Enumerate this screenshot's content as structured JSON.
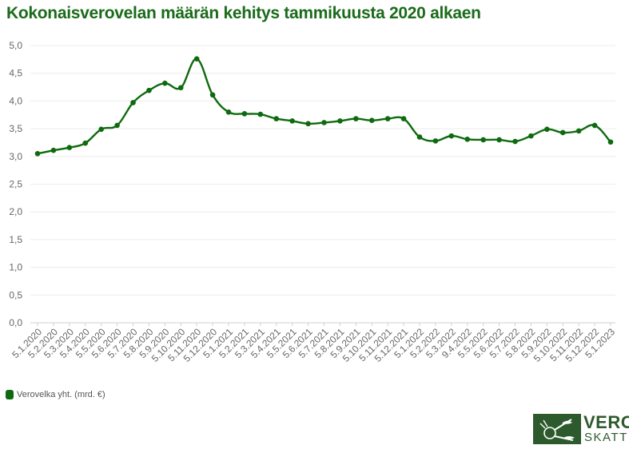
{
  "title": "Kokonaisverovelan määrän kehitys tammikuusta 2020 alkaen",
  "legend": {
    "label": "Verovelka yht. (mrd. €)",
    "color": "#0e6a0e"
  },
  "logo": {
    "word1": "VERO",
    "word2": "SKATT"
  },
  "chart_data": {
    "type": "line",
    "categories": [
      "5.1.2020",
      "5.2.2020",
      "5.3.2020",
      "5.4.2020",
      "5.5.2020",
      "5.6.2020",
      "5.7.2020",
      "5.8.2020",
      "5.9.2020",
      "5.10.2020",
      "5.11.2020",
      "5.12.2020",
      "5.1.2021",
      "5.2.2021",
      "5.3.2021",
      "5.4.2021",
      "5.5.2021",
      "5.6.2021",
      "5.7.2021",
      "5.8.2021",
      "5.9.2021",
      "5.10.2021",
      "5.11.2021",
      "5.12.2021",
      "5.1.2022",
      "5.2.2022",
      "5.3.2022",
      "9.4.2022",
      "5.5.2022",
      "5.6.2022",
      "5.7.2022",
      "5.8.2022",
      "5.9.2022",
      "5.10.2022",
      "5.11.2022",
      "5.12.2022",
      "5.1.2023"
    ],
    "series": [
      {
        "name": "Verovelka yht. (mrd. €)",
        "color": "#0e6a0e",
        "values": [
          3.05,
          3.11,
          3.16,
          3.24,
          3.49,
          3.56,
          3.97,
          4.19,
          4.32,
          4.24,
          4.76,
          4.11,
          3.8,
          3.77,
          3.76,
          3.68,
          3.64,
          3.59,
          3.61,
          3.64,
          3.68,
          3.65,
          3.68,
          3.68,
          3.35,
          3.28,
          3.37,
          3.31,
          3.3,
          3.3,
          3.27,
          3.37,
          3.49,
          3.43,
          3.46,
          3.56,
          3.26
        ]
      }
    ],
    "ylim": [
      0,
      5
    ],
    "yticks": [
      "0,0",
      "0,5",
      "1,0",
      "1,5",
      "2,0",
      "2,5",
      "3,0",
      "3,5",
      "4,0",
      "4,5",
      "5,0"
    ],
    "grid": true,
    "legend_position": "bottom-left",
    "xlabel": "",
    "ylabel": ""
  }
}
